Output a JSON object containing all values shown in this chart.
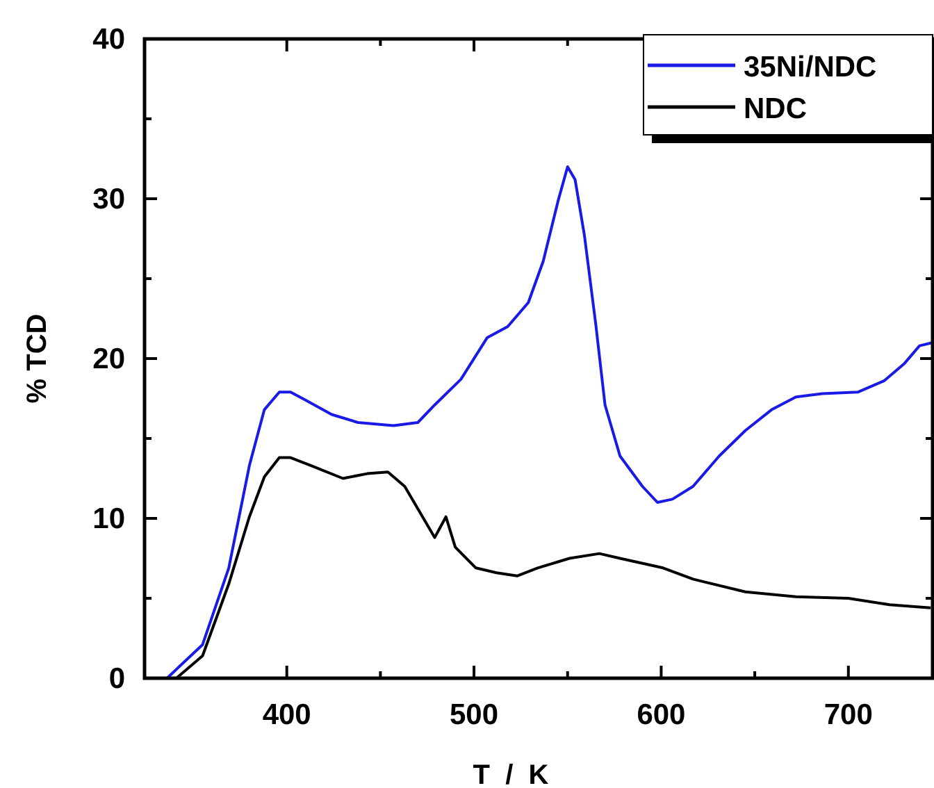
{
  "chart_data": {
    "type": "line",
    "xlabel": "T  /  K",
    "ylabel": "% TCD",
    "xlim": [
      324,
      745
    ],
    "xticks": [
      400,
      {
        "value": 450,
        "label": null
      },
      500,
      {
        "value": 550,
        "label": null
      },
      600,
      {
        "value": 650,
        "label": null
      },
      700
    ],
    "ylim": [
      0,
      40
    ],
    "yticks": [
      0,
      {
        "value": 5,
        "label": null
      },
      10,
      {
        "value": 15,
        "label": null
      },
      20,
      {
        "value": 25,
        "label": null
      },
      30,
      {
        "value": 35,
        "label": null
      },
      40
    ],
    "legend": "top right",
    "grid": false,
    "line_style": "solid",
    "series": [
      {
        "name": "35Ni/NDC",
        "color": "#1a1ae6",
        "x": [
          336,
          355,
          369,
          380,
          388,
          396,
          402,
          410,
          424,
          438,
          457,
          470,
          479,
          493,
          507,
          518,
          529,
          537,
          545,
          550,
          554,
          559,
          565,
          570,
          578,
          590,
          598,
          606,
          617,
          631,
          645,
          659,
          672,
          686,
          705,
          719,
          730,
          738,
          745
        ],
        "values": [
          0,
          2.1,
          6.9,
          13.3,
          16.8,
          17.9,
          17.9,
          17.4,
          16.5,
          16.0,
          15.8,
          16.0,
          17.1,
          18.7,
          21.3,
          22.0,
          23.5,
          26.1,
          29.9,
          32.0,
          31.2,
          27.7,
          22.2,
          17.1,
          13.9,
          12.0,
          11.0,
          11.2,
          12.0,
          13.9,
          15.5,
          16.8,
          17.6,
          17.8,
          17.9,
          18.6,
          19.7,
          20.8,
          21.0
        ]
      },
      {
        "name": "NDC",
        "color": "#000000",
        "x": [
          341,
          355,
          369,
          380,
          388,
          396,
          402,
          413,
          430,
          443,
          454,
          463,
          471,
          479,
          485,
          490,
          501,
          512,
          523,
          534,
          551,
          567,
          578,
          601,
          617,
          645,
          672,
          700,
          722,
          744
        ],
        "values": [
          0,
          1.4,
          5.9,
          10.1,
          12.6,
          13.8,
          13.8,
          13.3,
          12.5,
          12.8,
          12.9,
          12.0,
          10.4,
          8.8,
          10.1,
          8.2,
          6.9,
          6.6,
          6.4,
          6.9,
          7.5,
          7.8,
          7.5,
          6.9,
          6.2,
          5.4,
          5.1,
          5.0,
          4.6,
          4.4
        ]
      }
    ]
  }
}
